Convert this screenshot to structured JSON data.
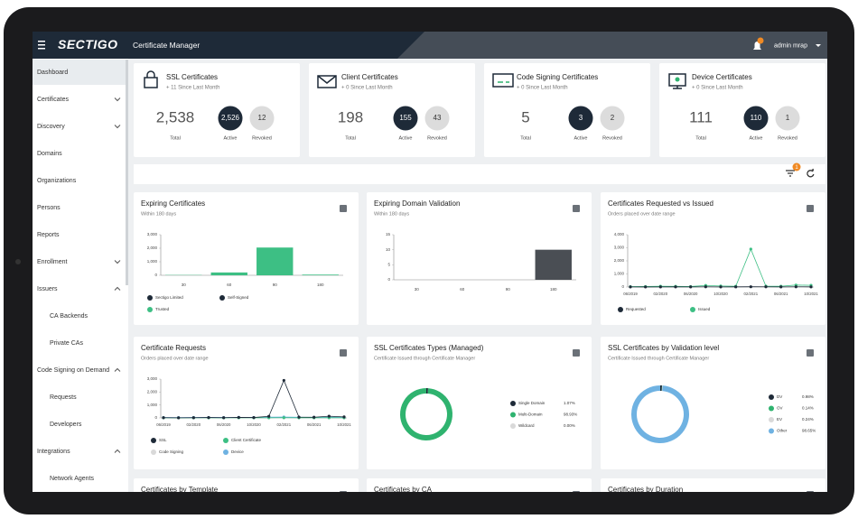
{
  "header": {
    "logo": "SECTIGO",
    "app_title": "Certificate Manager",
    "user": "admin mrap"
  },
  "sidebar": {
    "items": [
      {
        "label": "Dashboard",
        "active": true
      },
      {
        "label": "Certificates",
        "chevron": "down"
      },
      {
        "label": "Discovery",
        "chevron": "down"
      },
      {
        "label": "Domains"
      },
      {
        "label": "Organizations"
      },
      {
        "label": "Persons"
      },
      {
        "label": "Reports"
      },
      {
        "label": "Enrollment",
        "chevron": "down"
      },
      {
        "label": "Issuers",
        "chevron": "up"
      },
      {
        "label": "CA Backends",
        "sub": true
      },
      {
        "label": "Private CAs",
        "sub": true
      },
      {
        "label": "Code Signing on Demand",
        "chevron": "up"
      },
      {
        "label": "Requests",
        "sub": true
      },
      {
        "label": "Developers",
        "sub": true
      },
      {
        "label": "Integrations",
        "chevron": "up"
      },
      {
        "label": "Network Agents",
        "sub": true
      }
    ]
  },
  "summary_cards": [
    {
      "title": "SSL Certificates",
      "subtitle": "+ 11 Since Last Month",
      "total": "2,538",
      "total_label": "Total",
      "active": "2,526",
      "active_label": "Active",
      "revoked": "12",
      "revoked_label": "Revoked"
    },
    {
      "title": "Client Certificates",
      "subtitle": "+ 0 Since Last Month",
      "total": "198",
      "total_label": "Total",
      "active": "155",
      "active_label": "Active",
      "revoked": "43",
      "revoked_label": "Revoked"
    },
    {
      "title": "Code Signing Certificates",
      "subtitle": "+ 0 Since Last Month",
      "total": "5",
      "total_label": "Total",
      "active": "3",
      "active_label": "Active",
      "revoked": "2",
      "revoked_label": "Revoked"
    },
    {
      "title": "Device Certificates",
      "subtitle": "+ 0 Since Last Month",
      "total": "111",
      "total_label": "Total",
      "active": "110",
      "active_label": "Active",
      "revoked": "1",
      "revoked_label": "Revoked"
    }
  ],
  "filter_badge": "1",
  "charts": [
    {
      "type": "bar",
      "title": "Expiring Certificates",
      "subtitle": "Within 180 days",
      "categories": [
        "30",
        "60",
        "90",
        "180"
      ],
      "series": [
        {
          "name": "Sectigo Limited",
          "color": "#1e2a38",
          "values": [
            0,
            0,
            0,
            0
          ]
        },
        {
          "name": "Self-Signed",
          "color": "#1e2a38",
          "values": [
            0,
            0,
            0,
            0
          ]
        },
        {
          "name": "Trusted",
          "color": "#3dbf84",
          "values": [
            20,
            210,
            2050,
            50
          ]
        }
      ],
      "ylim": [
        0,
        3000
      ],
      "yticks": [
        0,
        {
          "value": 1000,
          "label": "1,000"
        },
        {
          "value": 2000,
          "label": "2,000"
        },
        {
          "value": 3000,
          "label": "3,000"
        }
      ],
      "grid": false
    },
    {
      "type": "bar",
      "title": "Expiring Domain Validation",
      "subtitle": "Within 180 days",
      "categories": [
        "30",
        "60",
        "90",
        "180"
      ],
      "values": [
        0,
        0,
        0,
        10
      ],
      "color": "#4a4e54",
      "ylim": [
        0,
        15
      ],
      "yticks": [
        0,
        5,
        10,
        15
      ],
      "grid": false
    },
    {
      "type": "line",
      "title": "Certificates Requested vs Issued",
      "subtitle": "Orders placed over date range",
      "categories": [
        "06/2019",
        null,
        "02/2020",
        null,
        "06/2020",
        null,
        "10/2020",
        null,
        "02/2021",
        null,
        "06/2021",
        null,
        "10/2021"
      ],
      "series": [
        {
          "name": "Requested",
          "color": "#1e2a38",
          "values": [
            10,
            5,
            8,
            12,
            10,
            15,
            10,
            12,
            20,
            15,
            10,
            18,
            12
          ]
        },
        {
          "name": "Issued",
          "color": "#3dbf84",
          "values": [
            30,
            40,
            60,
            50,
            40,
            120,
            80,
            60,
            2900,
            70,
            60,
            150,
            130
          ]
        }
      ],
      "ylim": [
        0,
        4000
      ],
      "yticks": [
        0,
        {
          "value": 1000,
          "label": "1,000"
        },
        {
          "value": 2000,
          "label": "2,000"
        },
        {
          "value": 3000,
          "label": "3,000"
        },
        {
          "value": 4000,
          "label": "4,000"
        }
      ],
      "grid": false
    },
    {
      "type": "line",
      "title": "Certificate Requests",
      "subtitle": "Orders placed over date range",
      "categories": [
        "06/2019",
        null,
        "02/2020",
        null,
        "06/2020",
        null,
        "10/2020",
        null,
        "02/2021",
        null,
        "06/2021",
        null,
        "10/2021"
      ],
      "series": [
        {
          "name": "SSL",
          "color": "#1e2a38",
          "values": [
            20,
            10,
            15,
            30,
            20,
            40,
            30,
            120,
            2900,
            60,
            50,
            130,
            80
          ]
        },
        {
          "name": "Client Certificate",
          "color": "#3dbf84",
          "values": [
            10,
            5,
            8,
            10,
            6,
            12,
            8,
            10,
            15,
            10,
            8,
            12,
            10
          ]
        },
        {
          "name": "Code Signing",
          "color": "#d9d9d9",
          "values": [
            0,
            0,
            0,
            0,
            0,
            0,
            0,
            0,
            0,
            0,
            0,
            0,
            0
          ]
        },
        {
          "name": "Device",
          "color": "#6fb2e2",
          "values": [
            30,
            25,
            35,
            40,
            30,
            45,
            35,
            60,
            70,
            50,
            45,
            60,
            55
          ]
        }
      ],
      "ylim": [
        0,
        3000
      ],
      "yticks": [
        0,
        {
          "value": 1000,
          "label": "1,000"
        },
        {
          "value": 2000,
          "label": "2,000"
        },
        {
          "value": 3000,
          "label": "3,000"
        }
      ],
      "grid": false
    },
    {
      "type": "donut",
      "title": "SSL Certificates Types (Managed)",
      "subtitle": "Certificate Issued through Certificate Manager",
      "categories": [
        "Single Domain",
        "Multi-Domain",
        "Wildcard"
      ],
      "values": [
        1.07,
        98.93,
        0
      ],
      "value_labels": [
        "1.07%",
        "98.93%",
        "0.00%"
      ],
      "colors": [
        "#1e2a38",
        "#2fb36f",
        "#d9d9d9"
      ]
    },
    {
      "type": "donut",
      "title": "SSL Certificates by Validation level",
      "subtitle": "Certificate Issued through Certificate Manager",
      "categories": [
        "DV",
        "OV",
        "EV",
        "Other"
      ],
      "values": [
        0.98,
        0.14,
        0.24,
        98.65
      ],
      "value_labels": [
        "0.98%",
        "0.14%",
        "0.24%",
        "98.65%"
      ],
      "colors": [
        "#1e2a38",
        "#2fb36f",
        "#d9d9d9",
        "#6fb2e2"
      ]
    },
    {
      "type": "partial",
      "title": "Certificates by Template"
    },
    {
      "type": "partial",
      "title": "Certificates by CA"
    },
    {
      "type": "partial",
      "title": "Certificates by Duration"
    }
  ]
}
